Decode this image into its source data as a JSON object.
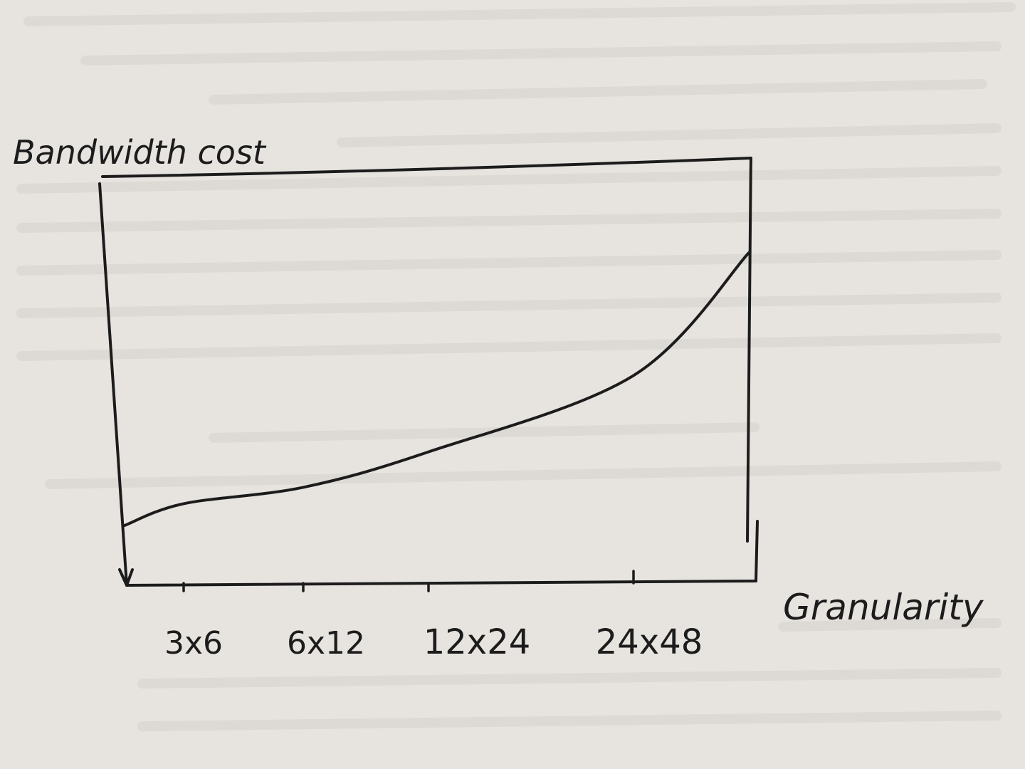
{
  "chart_data": {
    "type": "line",
    "ylabel": "Bandwidth cost",
    "xlabel": "Granularity",
    "categories": [
      "3x6",
      "6x12",
      "12x24",
      "24x48"
    ],
    "series": [
      {
        "values": [
          0.08,
          0.14,
          0.27,
          0.55
        ],
        "left_end_value": 0.0,
        "right_end_value": 1.0
      }
    ],
    "grid": false,
    "colors": {
      "paper": "#e7e4e0",
      "ink": "#1c1c1c",
      "ghost_text": "#cfcac5"
    }
  }
}
